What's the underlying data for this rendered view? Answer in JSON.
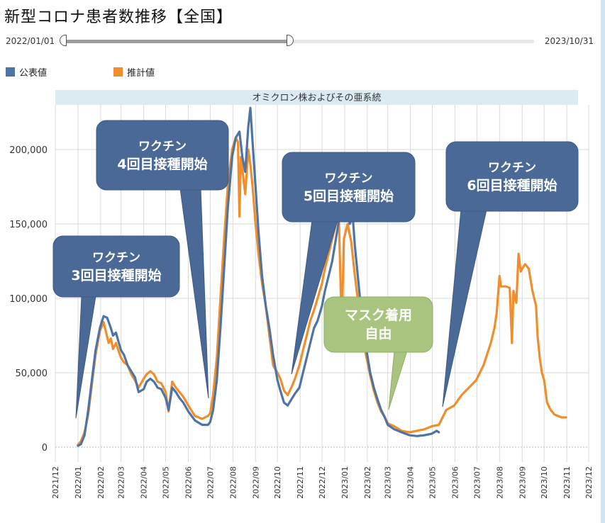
{
  "title": "新型コロナ患者数推移【全国】",
  "range": {
    "start_label": "2022/01/01",
    "end_label": "2023/10/31",
    "fill_fraction": 0.48
  },
  "legend": [
    {
      "label": "公表値",
      "color": "#4e74a6"
    },
    {
      "label": "推計値",
      "color": "#f08e2c"
    }
  ],
  "colors": {
    "balloon_blue": "#4b6997",
    "balloon_green": "#a8c47e",
    "band": "#dcebf2"
  },
  "band_label": "オミクロン株およびその亜系統",
  "callouts": [
    {
      "lines": [
        "ワクチン",
        "3回目接種開始"
      ],
      "style": "blue",
      "target": "2022-01"
    },
    {
      "lines": [
        "ワクチン",
        "4回目接種開始"
      ],
      "style": "blue",
      "target": "2022-06-25"
    },
    {
      "lines": [
        "ワクチン",
        "5回目接種開始"
      ],
      "style": "blue",
      "target": "2022-10-20"
    },
    {
      "lines": [
        "マスク着用",
        "自由"
      ],
      "style": "green",
      "target": "2023-03-13"
    },
    {
      "lines": [
        "ワクチン",
        "6回目接種開始"
      ],
      "style": "blue",
      "target": "2023-05-08"
    }
  ],
  "chart_data": {
    "type": "line",
    "x_tick_labels": [
      "2021/12",
      "2022/01",
      "2022/02",
      "2022/03",
      "2022/04",
      "2022/05",
      "2022/06",
      "2022/07",
      "2022/08",
      "2022/09",
      "2022/10",
      "2022/11",
      "2022/12",
      "2023/01",
      "2023/02",
      "2023/03",
      "2023/04",
      "2023/05",
      "2023/06",
      "2023/07",
      "2023/08",
      "2023/09",
      "2023/10",
      "2023/11",
      "2023/12"
    ],
    "y_tick_labels": [
      "0",
      "50,000",
      "100,000",
      "150,000",
      "200,000"
    ],
    "y_ticks": [
      0,
      50000,
      100000,
      150000,
      200000
    ],
    "ylim": [
      -10000,
      230000
    ],
    "grid": true,
    "series": [
      {
        "name": "公表値",
        "color": "#4e74a6",
        "points": [
          [
            "2022-01-01",
            1000
          ],
          [
            "2022-01-05",
            2000
          ],
          [
            "2022-01-10",
            8000
          ],
          [
            "2022-01-15",
            25000
          ],
          [
            "2022-01-20",
            45000
          ],
          [
            "2022-01-25",
            65000
          ],
          [
            "2022-01-31",
            80000
          ],
          [
            "2022-02-05",
            88000
          ],
          [
            "2022-02-10",
            87000
          ],
          [
            "2022-02-15",
            80000
          ],
          [
            "2022-02-18",
            75000
          ],
          [
            "2022-02-22",
            77000
          ],
          [
            "2022-02-26",
            70000
          ],
          [
            "2022-03-01",
            65000
          ],
          [
            "2022-03-05",
            62000
          ],
          [
            "2022-03-10",
            55000
          ],
          [
            "2022-03-15",
            51000
          ],
          [
            "2022-03-20",
            47000
          ],
          [
            "2022-03-25",
            37000
          ],
          [
            "2022-04-01",
            39000
          ],
          [
            "2022-04-05",
            44000
          ],
          [
            "2022-04-10",
            46000
          ],
          [
            "2022-04-15",
            44000
          ],
          [
            "2022-04-20",
            40000
          ],
          [
            "2022-04-25",
            39000
          ],
          [
            "2022-05-01",
            33000
          ],
          [
            "2022-05-05",
            25000
          ],
          [
            "2022-05-10",
            40000
          ],
          [
            "2022-05-15",
            37000
          ],
          [
            "2022-05-20",
            33000
          ],
          [
            "2022-05-25",
            30000
          ],
          [
            "2022-06-01",
            24000
          ],
          [
            "2022-06-10",
            18000
          ],
          [
            "2022-06-20",
            15000
          ],
          [
            "2022-06-28",
            15000
          ],
          [
            "2022-07-01",
            17000
          ],
          [
            "2022-07-05",
            25000
          ],
          [
            "2022-07-10",
            45000
          ],
          [
            "2022-07-15",
            80000
          ],
          [
            "2022-07-20",
            120000
          ],
          [
            "2022-07-25",
            160000
          ],
          [
            "2022-07-31",
            195000
          ],
          [
            "2022-08-05",
            208000
          ],
          [
            "2022-08-10",
            212000
          ],
          [
            "2022-08-14",
            195000
          ],
          [
            "2022-08-18",
            185000
          ],
          [
            "2022-08-22",
            215000
          ],
          [
            "2022-08-25",
            228000
          ],
          [
            "2022-08-28",
            205000
          ],
          [
            "2022-09-01",
            175000
          ],
          [
            "2022-09-05",
            145000
          ],
          [
            "2022-09-10",
            115000
          ],
          [
            "2022-09-15",
            95000
          ],
          [
            "2022-09-20",
            80000
          ],
          [
            "2022-09-25",
            62000
          ],
          [
            "2022-10-01",
            45000
          ],
          [
            "2022-10-05",
            38000
          ],
          [
            "2022-10-10",
            30000
          ],
          [
            "2022-10-15",
            28000
          ],
          [
            "2022-10-20",
            32000
          ],
          [
            "2022-10-25",
            36000
          ],
          [
            "2022-10-31",
            40000
          ],
          [
            "2022-11-05",
            50000
          ],
          [
            "2022-11-10",
            60000
          ],
          [
            "2022-11-15",
            70000
          ],
          [
            "2022-11-20",
            80000
          ],
          [
            "2022-11-25",
            85000
          ],
          [
            "2022-12-01",
            95000
          ],
          [
            "2022-12-05",
            105000
          ],
          [
            "2022-12-10",
            115000
          ],
          [
            "2022-12-15",
            125000
          ],
          [
            "2022-12-20",
            140000
          ],
          [
            "2022-12-25",
            155000
          ],
          [
            "2022-12-31",
            165000
          ],
          [
            "2023-01-05",
            160000
          ],
          [
            "2023-01-08",
            150000
          ],
          [
            "2023-01-12",
            155000
          ],
          [
            "2023-01-15",
            135000
          ],
          [
            "2023-01-20",
            110000
          ],
          [
            "2023-01-25",
            85000
          ],
          [
            "2023-01-31",
            65000
          ],
          [
            "2023-02-05",
            50000
          ],
          [
            "2023-02-10",
            40000
          ],
          [
            "2023-02-15",
            32000
          ],
          [
            "2023-02-20",
            25000
          ],
          [
            "2023-02-25",
            20000
          ],
          [
            "2023-03-01",
            15000
          ],
          [
            "2023-03-10",
            12000
          ],
          [
            "2023-03-20",
            10000
          ],
          [
            "2023-03-31",
            8000
          ],
          [
            "2023-04-10",
            7500
          ],
          [
            "2023-04-20",
            8000
          ],
          [
            "2023-04-30",
            9000
          ],
          [
            "2023-05-07",
            11000
          ],
          [
            "2023-05-10",
            10000
          ]
        ]
      },
      {
        "name": "推計値",
        "color": "#f08e2c",
        "points": [
          [
            "2022-01-01",
            1500
          ],
          [
            "2022-01-05",
            4000
          ],
          [
            "2022-01-10",
            10000
          ],
          [
            "2022-01-15",
            22000
          ],
          [
            "2022-01-20",
            42000
          ],
          [
            "2022-01-25",
            62000
          ],
          [
            "2022-01-31",
            78000
          ],
          [
            "2022-02-05",
            84000
          ],
          [
            "2022-02-08",
            78000
          ],
          [
            "2022-02-12",
            70000
          ],
          [
            "2022-02-15",
            73000
          ],
          [
            "2022-02-18",
            66000
          ],
          [
            "2022-02-22",
            70000
          ],
          [
            "2022-02-26",
            64000
          ],
          [
            "2022-03-01",
            60000
          ],
          [
            "2022-03-05",
            57000
          ],
          [
            "2022-03-10",
            55000
          ],
          [
            "2022-03-15",
            49000
          ],
          [
            "2022-03-20",
            45000
          ],
          [
            "2022-03-25",
            40000
          ],
          [
            "2022-04-01",
            46000
          ],
          [
            "2022-04-05",
            49000
          ],
          [
            "2022-04-10",
            51000
          ],
          [
            "2022-04-15",
            49000
          ],
          [
            "2022-04-20",
            44000
          ],
          [
            "2022-04-25",
            43000
          ],
          [
            "2022-05-01",
            37000
          ],
          [
            "2022-05-05",
            24000
          ],
          [
            "2022-05-10",
            44000
          ],
          [
            "2022-05-15",
            40000
          ],
          [
            "2022-05-20",
            37000
          ],
          [
            "2022-05-25",
            34000
          ],
          [
            "2022-06-01",
            28000
          ],
          [
            "2022-06-10",
            21000
          ],
          [
            "2022-06-20",
            19000
          ],
          [
            "2022-06-28",
            21000
          ],
          [
            "2022-07-01",
            23000
          ],
          [
            "2022-07-05",
            35000
          ],
          [
            "2022-07-10",
            60000
          ],
          [
            "2022-07-15",
            100000
          ],
          [
            "2022-07-20",
            140000
          ],
          [
            "2022-07-25",
            175000
          ],
          [
            "2022-07-31",
            200000
          ],
          [
            "2022-08-05",
            208000
          ],
          [
            "2022-08-08",
            205000
          ],
          [
            "2022-08-10",
            155000
          ],
          [
            "2022-08-12",
            195000
          ],
          [
            "2022-08-18",
            170000
          ],
          [
            "2022-08-22",
            200000
          ],
          [
            "2022-08-25",
            190000
          ],
          [
            "2022-08-28",
            175000
          ],
          [
            "2022-09-01",
            150000
          ],
          [
            "2022-09-05",
            130000
          ],
          [
            "2022-09-10",
            110000
          ],
          [
            "2022-09-15",
            95000
          ],
          [
            "2022-09-20",
            75000
          ],
          [
            "2022-09-25",
            55000
          ],
          [
            "2022-10-01",
            50000
          ],
          [
            "2022-10-05",
            46000
          ],
          [
            "2022-10-10",
            38000
          ],
          [
            "2022-10-15",
            35000
          ],
          [
            "2022-10-20",
            40000
          ],
          [
            "2022-10-25",
            46000
          ],
          [
            "2022-10-31",
            55000
          ],
          [
            "2022-11-05",
            65000
          ],
          [
            "2022-11-10",
            75000
          ],
          [
            "2022-11-15",
            85000
          ],
          [
            "2022-11-20",
            92000
          ],
          [
            "2022-11-25",
            100000
          ],
          [
            "2022-12-01",
            110000
          ],
          [
            "2022-12-05",
            120000
          ],
          [
            "2022-12-10",
            130000
          ],
          [
            "2022-12-15",
            140000
          ],
          [
            "2022-12-20",
            150000
          ],
          [
            "2022-12-24",
            155000
          ],
          [
            "2022-12-28",
            80000
          ],
          [
            "2022-12-31",
            140000
          ],
          [
            "2023-01-05",
            150000
          ],
          [
            "2023-01-10",
            138000
          ],
          [
            "2023-01-15",
            115000
          ],
          [
            "2023-01-20",
            95000
          ],
          [
            "2023-01-25",
            75000
          ],
          [
            "2023-01-31",
            60000
          ],
          [
            "2023-02-05",
            48000
          ],
          [
            "2023-02-10",
            38000
          ],
          [
            "2023-02-15",
            30000
          ],
          [
            "2023-02-20",
            24000
          ],
          [
            "2023-02-25",
            20000
          ],
          [
            "2023-03-01",
            16000
          ],
          [
            "2023-03-10",
            14000
          ],
          [
            "2023-03-20",
            11000
          ],
          [
            "2023-03-31",
            10000
          ],
          [
            "2023-04-10",
            11000
          ],
          [
            "2023-04-20",
            12000
          ],
          [
            "2023-04-30",
            14000
          ],
          [
            "2023-05-10",
            15000
          ],
          [
            "2023-05-15",
            20000
          ],
          [
            "2023-05-20",
            25000
          ],
          [
            "2023-05-31",
            28000
          ],
          [
            "2023-06-10",
            35000
          ],
          [
            "2023-06-20",
            40000
          ],
          [
            "2023-06-30",
            45000
          ],
          [
            "2023-07-10",
            55000
          ],
          [
            "2023-07-20",
            70000
          ],
          [
            "2023-07-25",
            80000
          ],
          [
            "2023-07-28",
            90000
          ],
          [
            "2023-08-01",
            115000
          ],
          [
            "2023-08-03",
            108000
          ],
          [
            "2023-08-10",
            108000
          ],
          [
            "2023-08-15",
            107000
          ],
          [
            "2023-08-18",
            70000
          ],
          [
            "2023-08-20",
            105000
          ],
          [
            "2023-08-24",
            97000
          ],
          [
            "2023-08-27",
            130000
          ],
          [
            "2023-08-30",
            118000
          ],
          [
            "2023-09-01",
            120000
          ],
          [
            "2023-09-05",
            123000
          ],
          [
            "2023-09-10",
            120000
          ],
          [
            "2023-09-15",
            105000
          ],
          [
            "2023-09-20",
            95000
          ],
          [
            "2023-09-22",
            75000
          ],
          [
            "2023-09-25",
            60000
          ],
          [
            "2023-09-28",
            50000
          ],
          [
            "2023-10-01",
            45000
          ],
          [
            "2023-10-05",
            30000
          ],
          [
            "2023-10-10",
            25000
          ],
          [
            "2023-10-15",
            22000
          ],
          [
            "2023-10-20",
            21000
          ],
          [
            "2023-10-25",
            20000
          ],
          [
            "2023-10-31",
            20000
          ]
        ]
      }
    ]
  }
}
